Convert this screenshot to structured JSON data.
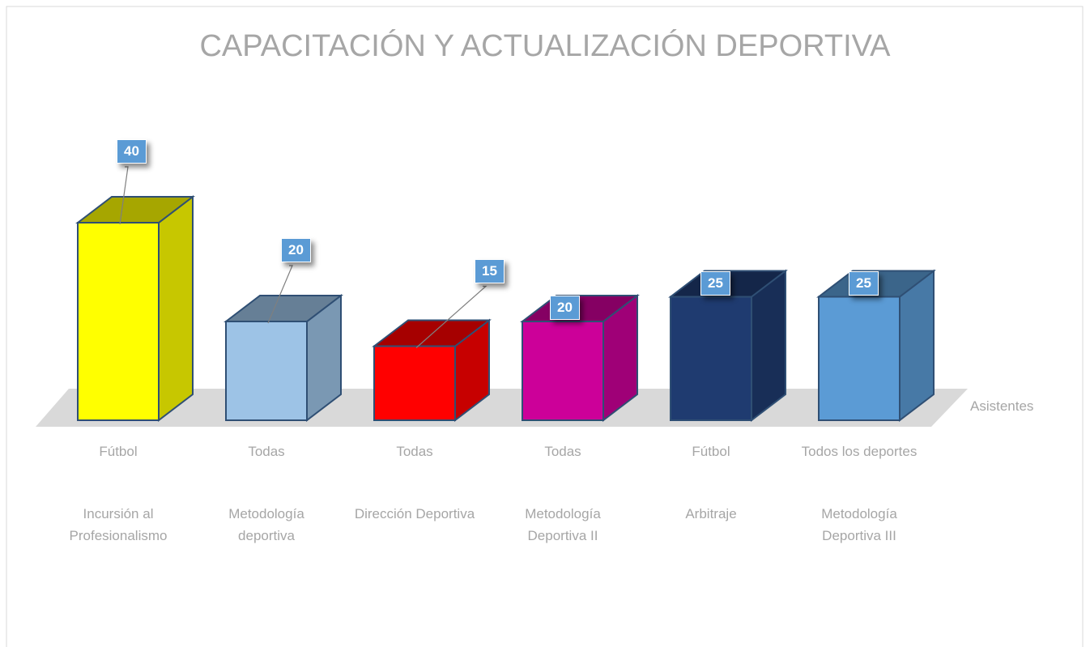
{
  "chart_data": {
    "type": "bar3d",
    "title": "CAPACITACIÓN Y ACTUALIZACIÓN DEPORTIVA",
    "categories": [
      "Incursión al Profesionalismo",
      "Metodología deportiva",
      "Dirección Deportiva",
      "Metodología Deportiva II",
      "Arbitraje",
      "Metodología Deportiva III"
    ],
    "sports": [
      "Fútbol",
      "Todas",
      "Todas",
      "Todas",
      "Fútbol",
      "Todos los deportes"
    ],
    "series": [
      {
        "name": "Asistentes",
        "values": [
          40,
          20,
          15,
          20,
          25,
          25
        ],
        "colors": [
          "#ffff00",
          "#9dc3e6",
          "#ff0000",
          "#cc0099",
          "#1f3b70",
          "#5b9bd5"
        ]
      }
    ]
  }
}
